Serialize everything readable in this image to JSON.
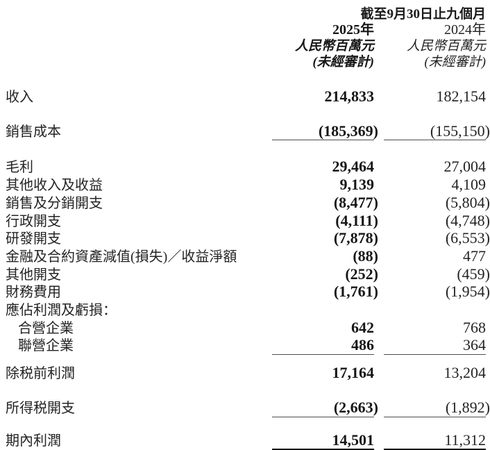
{
  "document": {
    "period_header": "截至9月30日止九個月",
    "columns": {
      "y2025": {
        "year": "2025年",
        "unit": "人民幣百萬元",
        "audit": "(未經審計)"
      },
      "y2024": {
        "year": "2024年",
        "unit": "人民幣百萬元",
        "audit": "(未經審計)"
      }
    },
    "rows": [
      {
        "label": "收入",
        "v2025": "214,833",
        "v2024": "182,154"
      },
      {
        "label": "銷售成本",
        "v2025": "(185,369)",
        "v2024": "(155,150)"
      },
      {
        "label": "毛利",
        "v2025": "29,464",
        "v2024": "27,004"
      },
      {
        "label": "其他收入及收益",
        "v2025": "9,139",
        "v2024": "4,109"
      },
      {
        "label": "銷售及分銷開支",
        "v2025": "(8,477)",
        "v2024": "(5,804)"
      },
      {
        "label": "行政開支",
        "v2025": "(4,111)",
        "v2024": "(4,748)"
      },
      {
        "label": "研發開支",
        "v2025": "(7,878)",
        "v2024": "(6,553)"
      },
      {
        "label": "金融及合約資產減值(損失)／收益淨額",
        "v2025": "(88)",
        "v2024": "477"
      },
      {
        "label": "其他開支",
        "v2025": "(252)",
        "v2024": "(459)"
      },
      {
        "label": "財務費用",
        "v2025": "(1,761)",
        "v2024": "(1,954)"
      },
      {
        "label": "應佔利潤及虧損：",
        "v2025": "",
        "v2024": ""
      },
      {
        "label": "合營企業",
        "v2025": "642",
        "v2024": "768"
      },
      {
        "label": "聯營企業",
        "v2025": "486",
        "v2024": "364"
      },
      {
        "label": "除税前利潤",
        "v2025": "17,164",
        "v2024": "13,204"
      },
      {
        "label": "所得税開支",
        "v2025": "(2,663)",
        "v2024": "(1,892)"
      },
      {
        "label": "期內利潤",
        "v2025": "14,501",
        "v2024": "11,312"
      }
    ]
  }
}
